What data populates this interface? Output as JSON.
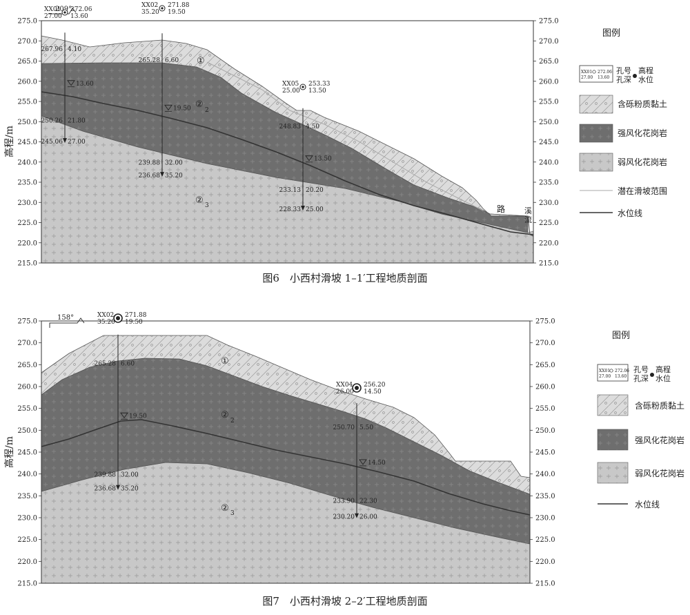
{
  "figures": [
    {
      "caption": "图6　小西村滑坡 1–1′工程地质剖面",
      "orientation": "209°",
      "y_axis_label": "高程/m",
      "y_ticks": [
        "275.0",
        "270.0",
        "265.0",
        "260.0",
        "255.0",
        "250.0",
        "245.0",
        "240.0",
        "235.0",
        "230.0",
        "225.0",
        "220.0",
        "215.0"
      ],
      "layer_labels": [
        {
          "main": "①",
          "sub": ""
        },
        {
          "main": "②",
          "sub": "2"
        },
        {
          "main": "②",
          "sub": "3"
        }
      ],
      "place_labels": {
        "road": "路",
        "stream_1": "溪",
        "stream_2": "流"
      },
      "boreholes": [
        {
          "id": "XX01",
          "depth": "27.00",
          "elevation": "272.06",
          "water": "13.60",
          "contacts": [
            {
              "elev": "267.96",
              "depth": "4.10"
            },
            {
              "elev": "250.26",
              "depth": "21.80"
            },
            {
              "elev": "245.06",
              "depth": "27.00"
            }
          ],
          "water_mark": "13.60"
        },
        {
          "id": "XX02",
          "depth": "35.20",
          "elevation": "271.88",
          "water": "19.50",
          "contacts": [
            {
              "elev": "265.28",
              "depth": "6.60"
            },
            {
              "elev": "239.88",
              "depth": "32.00"
            },
            {
              "elev": "236.68",
              "depth": "35.20"
            }
          ],
          "water_mark": "19.50"
        },
        {
          "id": "XX05",
          "depth": "25.00",
          "elevation": "253.33",
          "water": "13.50",
          "contacts": [
            {
              "elev": "248.83",
              "depth": "4.50"
            },
            {
              "elev": "233.13",
              "depth": "20.20"
            },
            {
              "elev": "228.33",
              "depth": "25.00"
            }
          ],
          "water_mark": "13.50"
        }
      ],
      "legend": {
        "title": "图例",
        "borehole_sample": {
          "id": "XX01",
          "depth": "27.00",
          "elevation": "272.06",
          "water": "13.60"
        },
        "borehole_labels": {
          "hole_no": "孔号",
          "hole_depth": "孔深",
          "elevation": "高程",
          "water_level": "水位"
        },
        "items": [
          {
            "key": "clay",
            "label": "含砾粉质黏土"
          },
          {
            "key": "strong",
            "label": "强风化花岗岩"
          },
          {
            "key": "weak",
            "label": "弱风化花岗岩"
          },
          {
            "key": "slide",
            "label": "潜在滑坡范围"
          },
          {
            "key": "water",
            "label": "水位线"
          }
        ]
      }
    },
    {
      "caption": "图7　小西村滑坡 2–2′工程地质剖面",
      "orientation": "158°",
      "y_axis_label": "高程/m",
      "y_ticks": [
        "275.0",
        "270.0",
        "265.0",
        "260.0",
        "255.0",
        "250.0",
        "245.0",
        "240.0",
        "235.0",
        "230.0",
        "225.0",
        "220.0",
        "215.0"
      ],
      "layer_labels": [
        {
          "main": "①",
          "sub": ""
        },
        {
          "main": "②",
          "sub": "2"
        },
        {
          "main": "②",
          "sub": "3"
        }
      ],
      "boreholes": [
        {
          "id": "XX02",
          "depth": "35.20",
          "elevation": "271.88",
          "water": "19.50",
          "contacts": [
            {
              "elev": "265.28",
              "depth": "6.60"
            },
            {
              "elev": "239.88",
              "depth": "32.00"
            },
            {
              "elev": "236.68",
              "depth": "35.20"
            }
          ],
          "water_mark": "19.50"
        },
        {
          "id": "XX04",
          "depth": "26.00",
          "elevation": "256.20",
          "water": "14.50",
          "contacts": [
            {
              "elev": "250.70",
              "depth": "5.50"
            },
            {
              "elev": "233.90",
              "depth": "22.30"
            },
            {
              "elev": "230.20",
              "depth": "26.00"
            }
          ],
          "water_mark": "14.50"
        }
      ],
      "legend": {
        "title": "图例",
        "borehole_sample": {
          "id": "XX01",
          "depth": "27.00",
          "elevation": "272.06",
          "water": "13.60"
        },
        "borehole_labels": {
          "hole_no": "孔号",
          "hole_depth": "孔深",
          "elevation": "高程",
          "water_level": "水位"
        },
        "items": [
          {
            "key": "clay",
            "label": "含砾粉质黏土"
          },
          {
            "key": "strong",
            "label": "强风化花岗岩"
          },
          {
            "key": "weak",
            "label": "弱风化花岗岩"
          },
          {
            "key": "water",
            "label": "水位线"
          }
        ]
      }
    }
  ],
  "colors": {
    "clay": "#dcdcdc",
    "strong": "#6e6e6e",
    "weak": "#c8c8c8",
    "water_line": "#333333",
    "slide_line": "#aaaaaa"
  }
}
